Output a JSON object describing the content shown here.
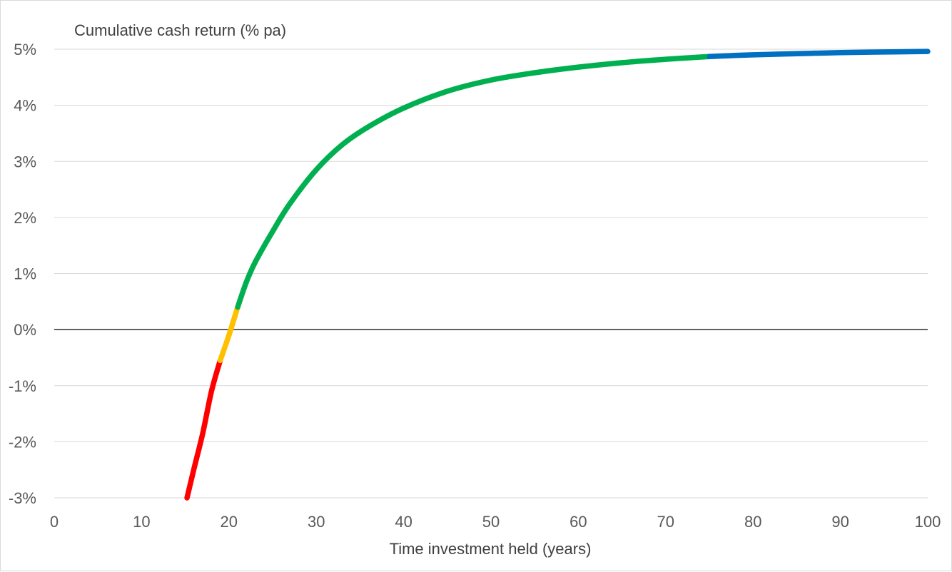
{
  "chart_data": {
    "type": "line",
    "title": "Cumulative cash return (% pa)",
    "xlabel": "Time investment held (years)",
    "ylabel": "",
    "xlim": [
      0,
      100
    ],
    "ylim": [
      -3,
      5
    ],
    "x_ticks": [
      0,
      10,
      20,
      30,
      40,
      50,
      60,
      70,
      80,
      90,
      100
    ],
    "y_ticks": [
      -3,
      -2,
      -1,
      0,
      1,
      2,
      3,
      4,
      5
    ],
    "x_tick_labels": [
      "0",
      "10",
      "20",
      "30",
      "40",
      "50",
      "60",
      "70",
      "80",
      "90",
      "100"
    ],
    "y_tick_labels": [
      "-3%",
      "-2%",
      "-1%",
      "0%",
      "1%",
      "2%",
      "3%",
      "4%",
      "5%"
    ],
    "grid": true,
    "legend": "none",
    "series": [
      {
        "color": "#ff0000",
        "points": [
          [
            15.2,
            -3.0
          ],
          [
            16,
            -2.48
          ],
          [
            17,
            -1.85
          ],
          [
            18,
            -1.1
          ],
          [
            19,
            -0.55
          ]
        ]
      },
      {
        "color": "#ffc000",
        "points": [
          [
            19,
            -0.55
          ],
          [
            20,
            -0.1
          ],
          [
            21,
            0.4
          ]
        ]
      },
      {
        "color": "#00b050",
        "points": [
          [
            21,
            0.4
          ],
          [
            22,
            0.85
          ],
          [
            23,
            1.2
          ],
          [
            25,
            1.75
          ],
          [
            27,
            2.25
          ],
          [
            30,
            2.85
          ],
          [
            33,
            3.3
          ],
          [
            36,
            3.62
          ],
          [
            40,
            3.95
          ],
          [
            45,
            4.25
          ],
          [
            50,
            4.45
          ],
          [
            55,
            4.58
          ],
          [
            60,
            4.68
          ],
          [
            65,
            4.76
          ],
          [
            70,
            4.82
          ],
          [
            75,
            4.87
          ]
        ]
      },
      {
        "color": "#0070c0",
        "points": [
          [
            75,
            4.87
          ],
          [
            80,
            4.9
          ],
          [
            85,
            4.92
          ],
          [
            90,
            4.94
          ],
          [
            95,
            4.95
          ],
          [
            100,
            4.96
          ]
        ]
      }
    ],
    "colors": {
      "gridline": "#d9d9d9",
      "zero_axis": "#000000",
      "tick_text": "#595959",
      "title_text": "#404040"
    }
  }
}
